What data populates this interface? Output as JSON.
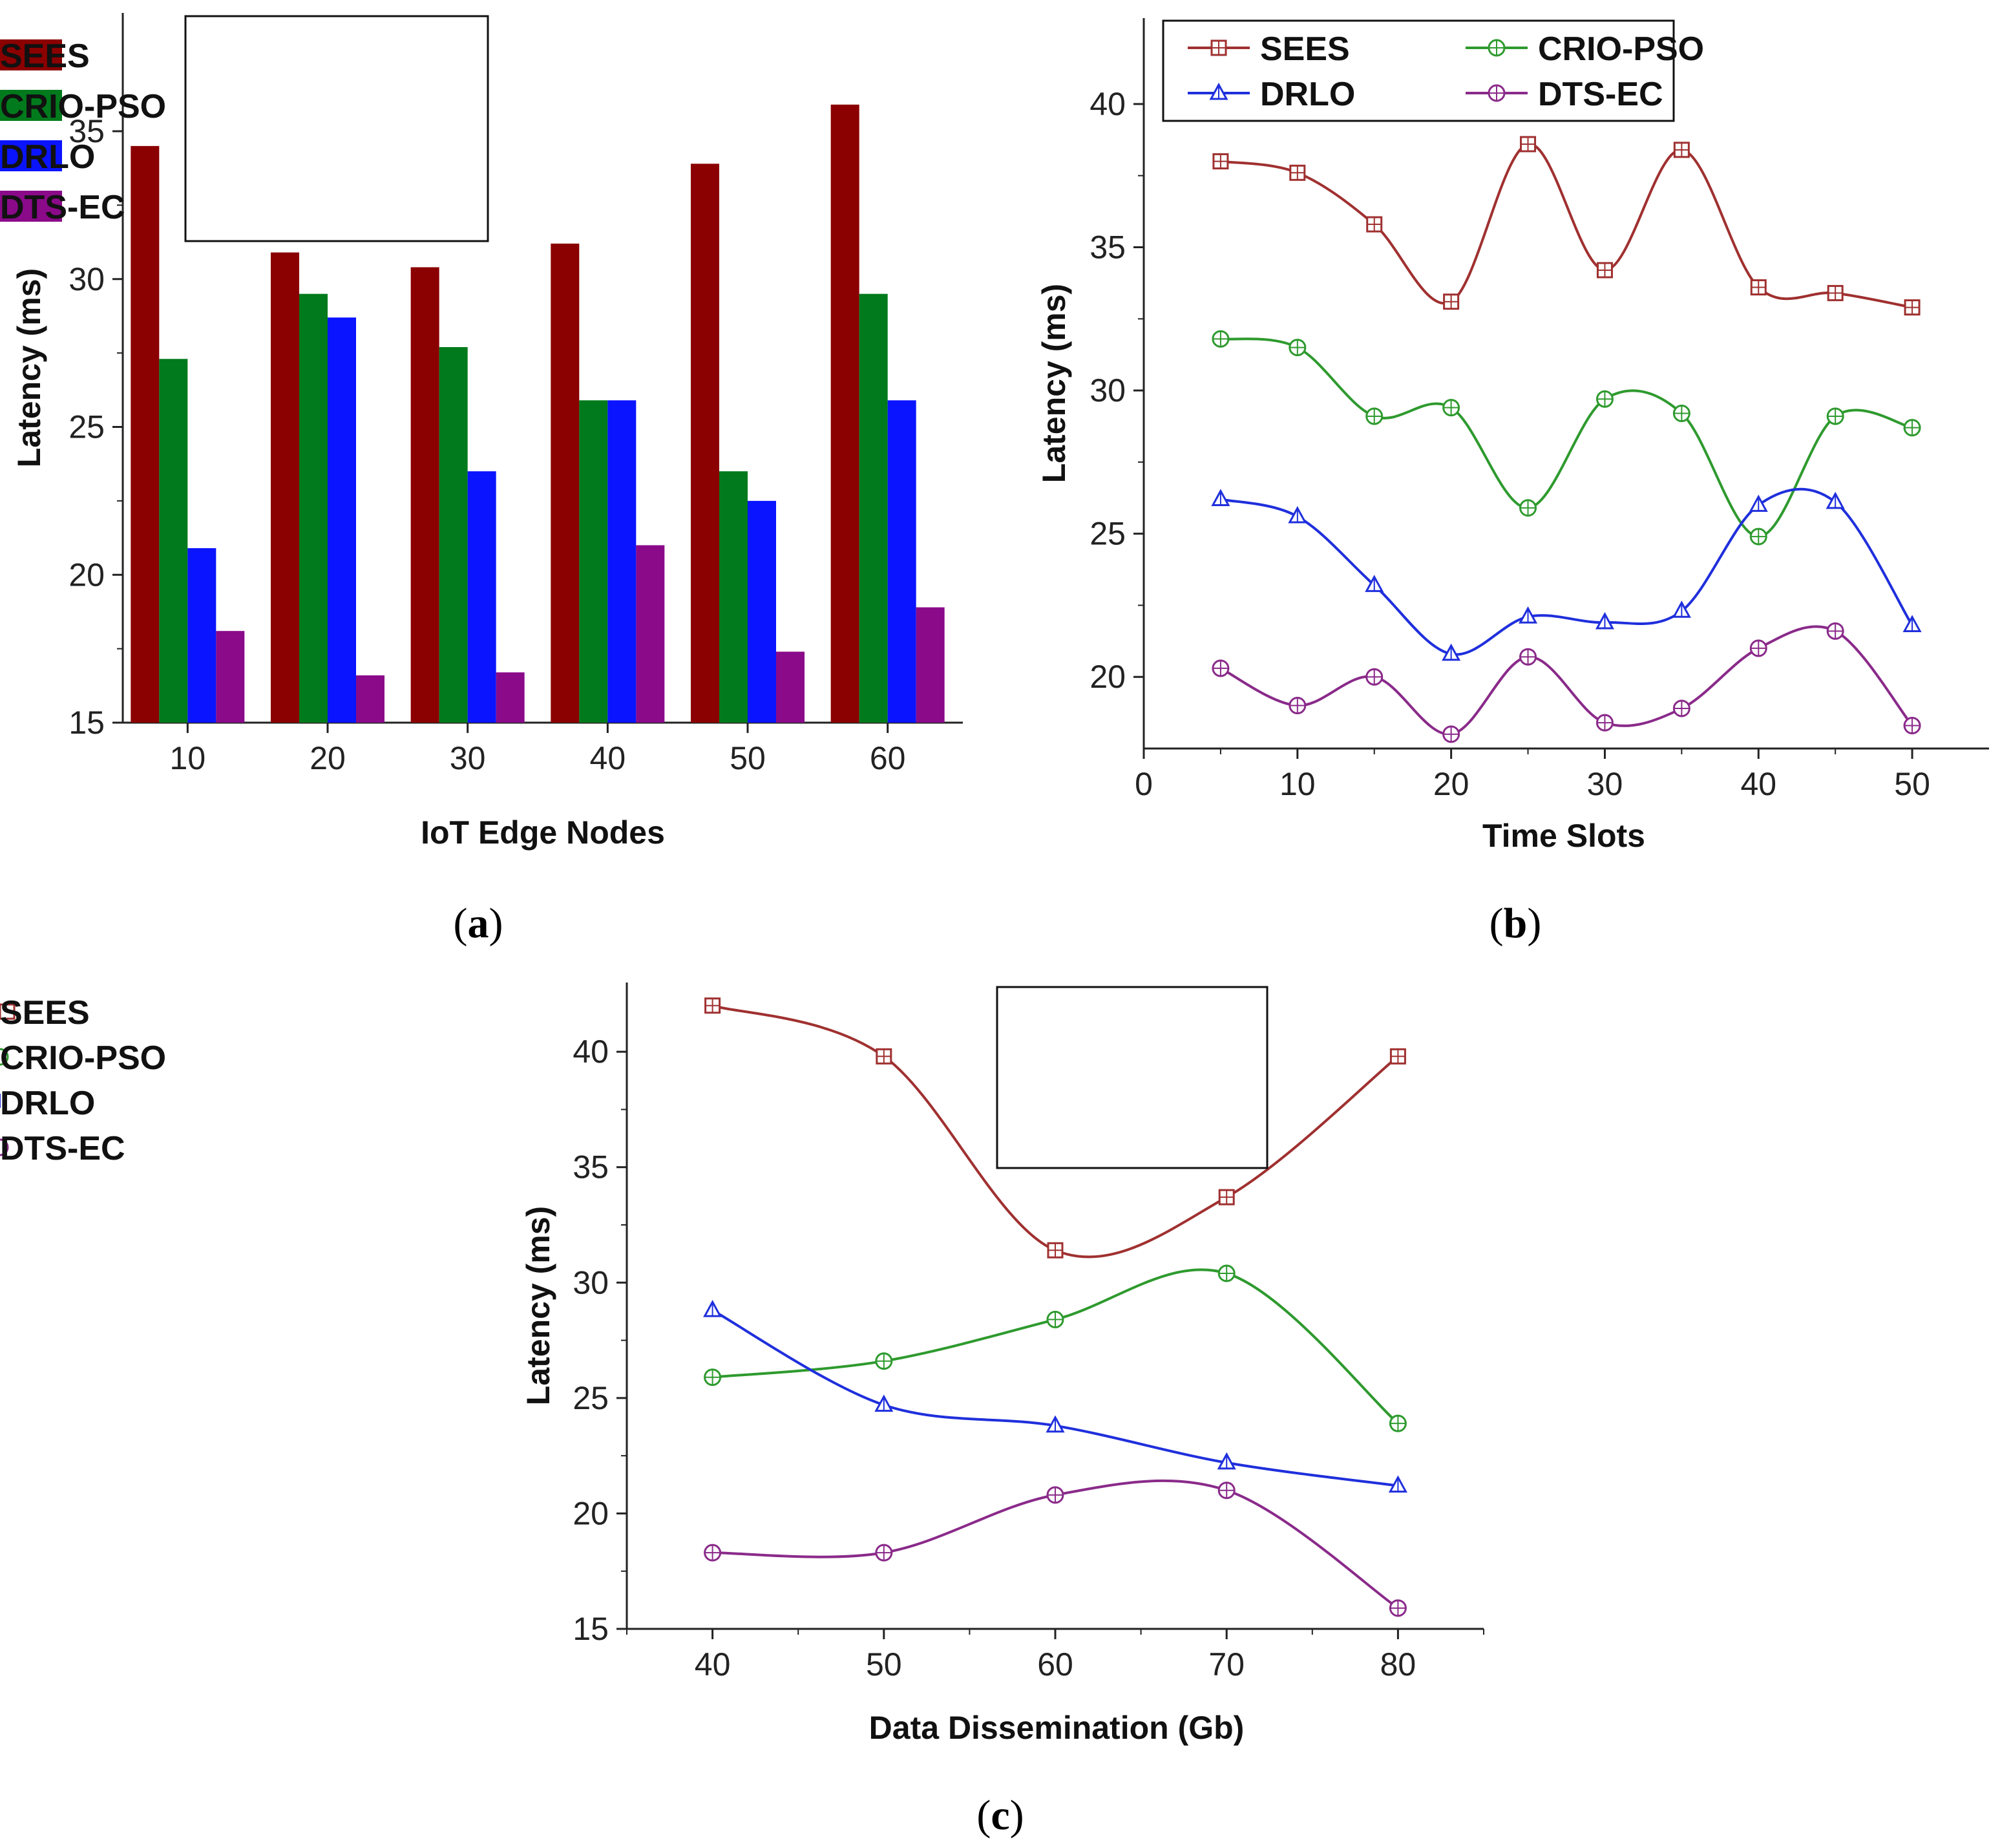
{
  "chart_data": [
    {
      "type": "bar",
      "panel": "a",
      "xlabel": "IoT Edge Nodes",
      "ylabel": "Latency (ms)",
      "categories": [
        "10",
        "20",
        "30",
        "40",
        "50",
        "60"
      ],
      "ylim": [
        15,
        39
      ],
      "yticks": [
        15,
        20,
        25,
        30,
        35
      ],
      "series": [
        {
          "name": "SEES",
          "color": "#8b0000",
          "values": [
            34.5,
            30.9,
            30.4,
            31.2,
            33.9,
            35.9
          ]
        },
        {
          "name": "CRIO-PSO",
          "color": "#007a1c",
          "values": [
            27.3,
            29.5,
            27.7,
            25.9,
            23.5,
            29.5
          ]
        },
        {
          "name": "DRLO",
          "color": "#0a14ff",
          "values": [
            20.9,
            28.7,
            23.5,
            25.9,
            22.5,
            25.9
          ]
        },
        {
          "name": "DTS-EC",
          "color": "#8a0a8a",
          "values": [
            18.1,
            16.6,
            16.7,
            21.0,
            17.4,
            18.9
          ]
        }
      ]
    },
    {
      "type": "line",
      "panel": "b",
      "xlabel": "Time Slots",
      "ylabel": "Latency (ms)",
      "x": [
        5,
        10,
        15,
        20,
        25,
        30,
        35,
        40,
        45,
        50
      ],
      "xlim": [
        0,
        55
      ],
      "ylim": [
        17.5,
        43
      ],
      "xticks": [
        0,
        10,
        20,
        30,
        40,
        50
      ],
      "yticks": [
        20,
        25,
        30,
        35,
        40
      ],
      "series": [
        {
          "name": "SEES",
          "color": "#a03030",
          "marker": "square",
          "values": [
            38.0,
            37.6,
            35.8,
            33.1,
            38.6,
            34.2,
            38.4,
            33.6,
            33.4,
            32.9
          ]
        },
        {
          "name": "CRIO-PSO",
          "color": "#2e9a2e",
          "marker": "circle",
          "values": [
            31.8,
            31.5,
            29.1,
            29.4,
            25.9,
            29.7,
            29.2,
            24.9,
            29.1,
            28.7
          ]
        },
        {
          "name": "DRLO",
          "color": "#1f2fdc",
          "marker": "triangle",
          "values": [
            26.2,
            25.6,
            23.2,
            20.8,
            22.1,
            21.9,
            22.3,
            26.0,
            26.1,
            21.8
          ]
        },
        {
          "name": "DTS-EC",
          "color": "#8a2a8a",
          "marker": "circle",
          "values": [
            20.3,
            19.0,
            20.0,
            18.0,
            20.7,
            18.4,
            18.9,
            21.0,
            21.6,
            18.3
          ]
        }
      ]
    },
    {
      "type": "line",
      "panel": "c",
      "xlabel": "Data Dissemination (Gb)",
      "ylabel": "Latency (ms)",
      "x": [
        40,
        50,
        60,
        70,
        80
      ],
      "xlim": [
        35,
        85
      ],
      "ylim": [
        15,
        43
      ],
      "xticks": [
        40,
        50,
        60,
        70,
        80
      ],
      "yticks": [
        15,
        20,
        25,
        30,
        35,
        40
      ],
      "series": [
        {
          "name": "SEES",
          "color": "#a03030",
          "marker": "square",
          "values": [
            42.0,
            39.8,
            31.4,
            33.7,
            39.8
          ]
        },
        {
          "name": "CRIO-PSO",
          "color": "#2e9a2e",
          "marker": "circle",
          "values": [
            25.9,
            26.6,
            28.4,
            30.4,
            23.9
          ]
        },
        {
          "name": "DRLO",
          "color": "#1f2fdc",
          "marker": "triangle",
          "values": [
            28.8,
            24.7,
            23.8,
            22.2,
            21.2
          ]
        },
        {
          "name": "DTS-EC",
          "color": "#8a2a8a",
          "marker": "circle",
          "values": [
            18.3,
            18.3,
            20.8,
            21.0,
            15.9
          ]
        }
      ]
    }
  ],
  "panel_labels": {
    "a": "a",
    "b": "b",
    "c": "c"
  }
}
